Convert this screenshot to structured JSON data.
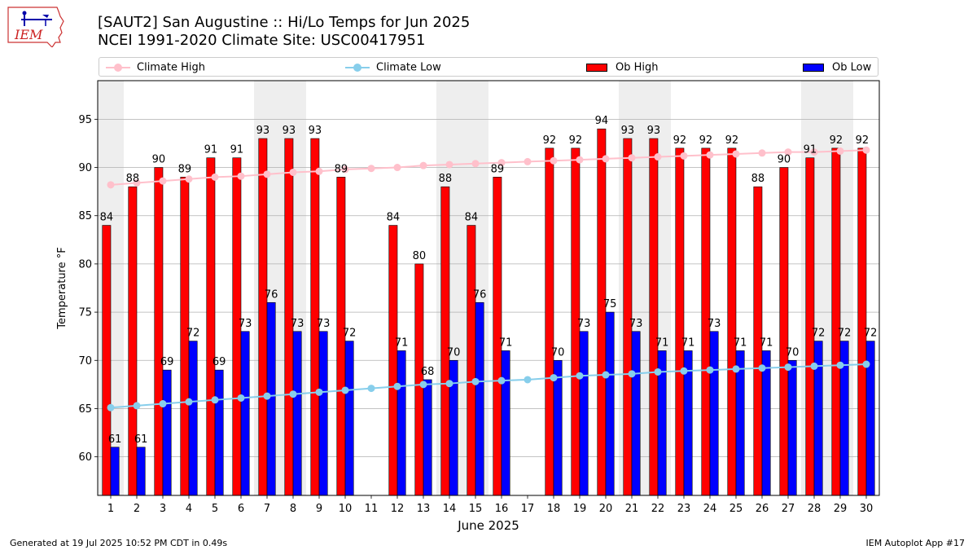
{
  "header": {
    "title_line1": "[SAUT2] San Augustine :: Hi/Lo Temps for Jun 2025",
    "title_line2": "NCEI 1991-2020 Climate Site: USC00417951"
  },
  "logo": {
    "text": "IEM",
    "icon": "iem-state-map-logo"
  },
  "footer": {
    "generated": "Generated at 19 Jul 2025 10:52 PM CDT in 0.49s",
    "app": "IEM Autoplot App #17"
  },
  "colors": {
    "ob_high": "#ff0000",
    "ob_low": "#0000ff",
    "climate_high": "#ffc0cb",
    "climate_low": "#87ceeb",
    "weekend_band": "#eeeeee",
    "grid": "#b0b0b0"
  },
  "chart_data": {
    "type": "bar",
    "xlabel": "June 2025",
    "ylabel": "Temperature °F",
    "ylim": [
      56,
      99
    ],
    "yticks": [
      60,
      65,
      70,
      75,
      80,
      85,
      90,
      95
    ],
    "grid": "horizontal",
    "legend_position": "top",
    "categories": [
      "1",
      "2",
      "3",
      "4",
      "5",
      "6",
      "7",
      "8",
      "9",
      "10",
      "11",
      "12",
      "13",
      "14",
      "15",
      "16",
      "17",
      "18",
      "19",
      "20",
      "21",
      "22",
      "23",
      "24",
      "25",
      "26",
      "27",
      "28",
      "29",
      "30"
    ],
    "weekend_days": [
      1,
      7,
      8,
      14,
      15,
      21,
      22,
      28,
      29
    ],
    "series": [
      {
        "name": "Climate High",
        "kind": "line",
        "values": [
          88.2,
          88.4,
          88.6,
          88.8,
          89.0,
          89.1,
          89.3,
          89.5,
          89.6,
          89.8,
          89.9,
          90.0,
          90.2,
          90.3,
          90.4,
          90.5,
          90.6,
          90.7,
          90.8,
          90.9,
          91.0,
          91.1,
          91.2,
          91.3,
          91.4,
          91.5,
          91.6,
          91.6,
          91.7,
          91.8
        ]
      },
      {
        "name": "Climate Low",
        "kind": "line",
        "values": [
          65.1,
          65.3,
          65.5,
          65.7,
          65.9,
          66.1,
          66.3,
          66.5,
          66.7,
          66.9,
          67.1,
          67.3,
          67.5,
          67.6,
          67.8,
          67.9,
          68.0,
          68.2,
          68.4,
          68.5,
          68.6,
          68.8,
          68.9,
          69.0,
          69.1,
          69.2,
          69.3,
          69.4,
          69.5,
          69.6
        ]
      },
      {
        "name": "Ob High",
        "kind": "bar",
        "values": [
          84,
          88,
          90,
          89,
          91,
          91,
          93,
          93,
          93,
          89,
          null,
          84,
          80,
          88,
          84,
          89,
          null,
          92,
          92,
          94,
          93,
          93,
          92,
          92,
          92,
          88,
          90,
          91,
          92,
          92
        ]
      },
      {
        "name": "Ob Low",
        "kind": "bar",
        "values": [
          61,
          61,
          69,
          72,
          69,
          73,
          76,
          73,
          73,
          72,
          null,
          71,
          68,
          70,
          76,
          71,
          null,
          70,
          73,
          75,
          73,
          71,
          71,
          73,
          71,
          71,
          70,
          72,
          72,
          72
        ]
      }
    ]
  }
}
